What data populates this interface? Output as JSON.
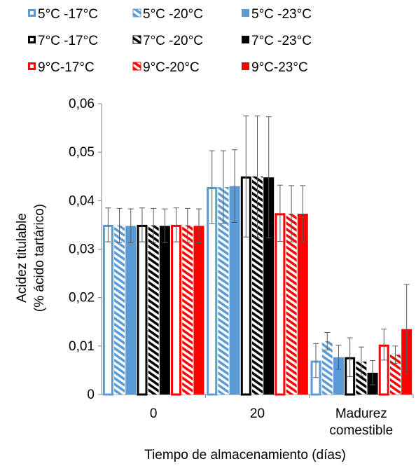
{
  "chart_data": {
    "type": "bar",
    "title": "",
    "xlabel": "Tiempo de almacenamiento (días)",
    "ylabel": [
      "Acidez titulable",
      "(% ácido tartárico)"
    ],
    "ylim": [
      0,
      0.06
    ],
    "yticks": [
      "0",
      "0,01",
      "0,02",
      "0,03",
      "0,04",
      "0,05",
      "0,06"
    ],
    "grid": false,
    "legend_position": "top",
    "categories": [
      [
        "0"
      ],
      [
        "20"
      ],
      [
        "Madurez",
        "comestible"
      ]
    ],
    "series": [
      {
        "name": "5°C -17°C",
        "color": "#5b9bd5",
        "fill": "outline",
        "values": [
          0.035,
          0.0428,
          0.007
        ],
        "errors": [
          0.0035,
          0.0075,
          0.0035
        ]
      },
      {
        "name": "5°C -20°C",
        "color": "#5b9bd5",
        "fill": "hatch",
        "values": [
          0.0349,
          0.0428,
          0.011
        ],
        "errors": [
          0.0035,
          0.0075,
          0.0018
        ]
      },
      {
        "name": "5°C -23°C",
        "color": "#5b9bd5",
        "fill": "solid",
        "values": [
          0.0348,
          0.043,
          0.0077
        ],
        "errors": [
          0.0035,
          0.0075,
          0.0025
        ]
      },
      {
        "name": "7°C -17°C",
        "color": "#000000",
        "fill": "outline",
        "values": [
          0.035,
          0.045,
          0.0077
        ],
        "errors": [
          0.0035,
          0.0125,
          0.004
        ]
      },
      {
        "name": "7°C -20°C",
        "color": "#000000",
        "fill": "hatch",
        "values": [
          0.0349,
          0.045,
          0.0068
        ],
        "errors": [
          0.0035,
          0.0125,
          0.003
        ]
      },
      {
        "name": "7°C -23°C",
        "color": "#000000",
        "fill": "solid",
        "values": [
          0.0348,
          0.0448,
          0.0045
        ],
        "errors": [
          0.0035,
          0.0125,
          0.0025
        ]
      },
      {
        "name": "9°C-17°C",
        "color": "#ff0000",
        "fill": "outline",
        "values": [
          0.035,
          0.0374,
          0.0103
        ],
        "errors": [
          0.0035,
          0.0058,
          0.0032
        ]
      },
      {
        "name": "9°C-20°C",
        "color": "#ff0000",
        "fill": "hatch",
        "values": [
          0.0349,
          0.0373,
          0.0082
        ],
        "errors": [
          0.0035,
          0.0058,
          0.0018
        ]
      },
      {
        "name": "9°C-23°C",
        "color": "#ff0000",
        "fill": "solid",
        "values": [
          0.0348,
          0.0373,
          0.0135
        ],
        "errors": [
          0.0035,
          0.0058,
          0.0092
        ]
      }
    ]
  }
}
